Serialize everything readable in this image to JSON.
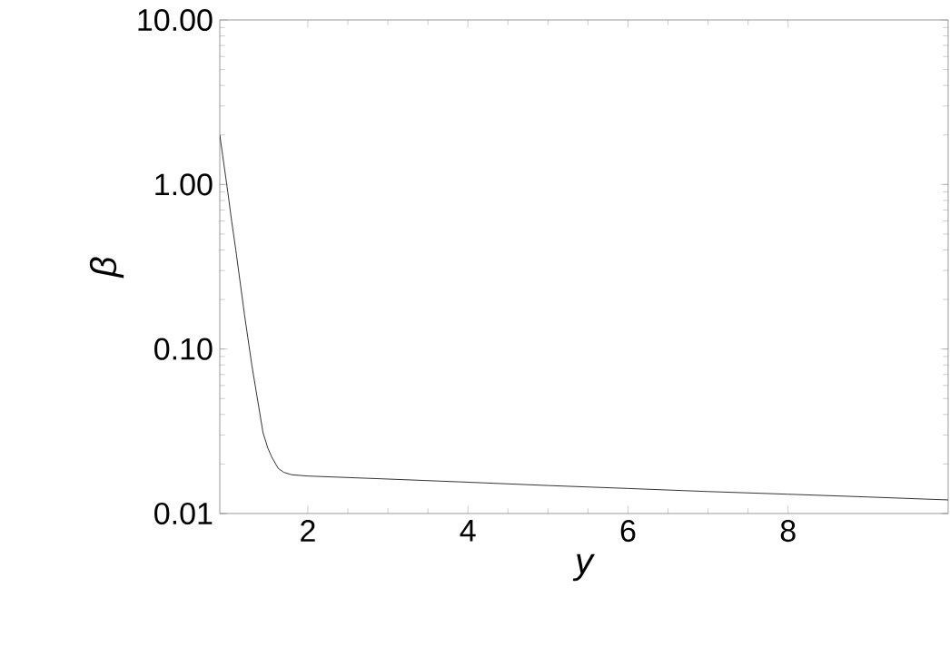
{
  "chart_data": {
    "type": "line",
    "xlabel": "y",
    "ylabel": "β",
    "log": "y",
    "grid": false,
    "xlim": [
      0.9,
      10
    ],
    "ylim": [
      0.01,
      10
    ],
    "xticks": [
      2,
      4,
      6,
      8
    ],
    "yticks": [
      {
        "value": 0.01,
        "label": "0.01"
      },
      {
        "value": 0.1,
        "label": "0.10"
      },
      {
        "value": 1,
        "label": "1.00"
      },
      {
        "value": 10,
        "label": "10.00"
      }
    ],
    "series": [
      {
        "color": "#000000",
        "x": [
          0.9,
          1.0,
          1.05,
          1.1,
          1.21,
          1.3,
          1.44,
          1.5,
          1.55,
          1.63,
          1.7,
          1.8,
          2,
          3,
          4,
          5,
          6,
          7,
          8,
          9,
          10
        ],
        "values": [
          2.0,
          0.9,
          0.59,
          0.4,
          0.16,
          0.08,
          0.031,
          0.025,
          0.022,
          0.0188,
          0.0178,
          0.0172,
          0.0169,
          0.0162,
          0.0155,
          0.0148,
          0.0142,
          0.0136,
          0.0131,
          0.0126,
          0.0121
        ]
      }
    ]
  }
}
